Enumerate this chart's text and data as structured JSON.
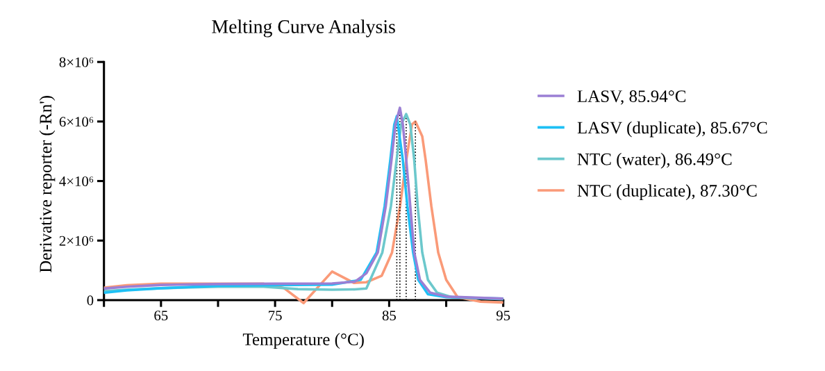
{
  "chart_data": {
    "type": "line",
    "title": "Melting Curve Analysis",
    "xlabel": "Temperature (°C)",
    "ylabel": "Derivative reporter (-Rn')",
    "xlim": [
      60,
      95
    ],
    "xticks": [
      {
        "value": 60,
        "label": null
      },
      65,
      {
        "value": 70,
        "label": null
      },
      75,
      {
        "value": 80,
        "label": null
      },
      85,
      {
        "value": 90,
        "label": null
      },
      95
    ],
    "ylim": [
      -200000,
      8000000
    ],
    "yticks": [
      0,
      {
        "value": 2000000,
        "label": "2×10⁶"
      },
      {
        "value": 4000000,
        "label": "4×10⁶"
      },
      {
        "value": 6000000,
        "label": "6×10⁶"
      },
      {
        "value": 8000000,
        "label": "8×10⁶"
      }
    ],
    "grid": false,
    "legend": "right",
    "marker": "none",
    "line_style": "solid",
    "series": [
      {
        "name": "LASV, 85.94°C",
        "color": "#9b7fd4",
        "x": [
          60,
          62,
          65,
          70,
          75,
          80,
          82,
          83,
          84.0,
          84.7,
          85.2,
          85.55,
          85.94,
          86.2,
          86.5,
          86.85,
          87.2,
          87.7,
          88.6,
          90,
          95
        ],
        "values": [
          390000,
          450000,
          510000,
          540000,
          550000,
          560000,
          620000,
          900000,
          1600000,
          3150000,
          4700000,
          5900000,
          6460000,
          5900000,
          4700000,
          3150000,
          1600000,
          680000,
          250000,
          120000,
          50000
        ]
      },
      {
        "name": "LASV (duplicate), 85.67°C",
        "color": "#1ec0f5",
        "x": [
          60,
          62,
          65,
          70,
          75,
          80,
          82.5,
          83.9,
          84.6,
          85.1,
          85.45,
          85.67,
          86.2,
          86.6,
          87.1,
          87.55,
          88.4,
          90,
          95
        ],
        "values": [
          250000,
          330000,
          400000,
          480000,
          500000,
          520000,
          680000,
          1600000,
          3150000,
          4700000,
          5900000,
          6180000,
          4700000,
          3150000,
          1600000,
          680000,
          200000,
          100000,
          50000
        ]
      },
      {
        "name": "NTC (water), 86.49°C",
        "color": "#6cc8cc",
        "x": [
          60,
          62,
          65,
          70,
          74,
          77,
          80,
          82,
          83,
          83.5,
          84.4,
          85.15,
          85.65,
          86.05,
          86.49,
          86.85,
          87.2,
          87.5,
          87.9,
          88.4,
          89.2,
          90.5,
          95
        ],
        "values": [
          300000,
          350000,
          400000,
          450000,
          450000,
          370000,
          350000,
          360000,
          390000,
          820000,
          1600000,
          3150000,
          4700000,
          5900000,
          6250000,
          5900000,
          4700000,
          3150000,
          1600000,
          680000,
          250000,
          100000,
          30000
        ]
      },
      {
        "name": "NTC (duplicate), 87.30°C",
        "color": "#fa9a78",
        "x": [
          60,
          62,
          65,
          70,
          74,
          75.8,
          77.5,
          80,
          81.9,
          83,
          84.35,
          85.25,
          85.95,
          86.5,
          87.0,
          87.3,
          87.9,
          88.2,
          88.7,
          89.3,
          90.0,
          91.0,
          93,
          95
        ],
        "values": [
          420000,
          500000,
          550000,
          550000,
          550000,
          400000,
          -100000,
          960000,
          580000,
          600000,
          820000,
          1600000,
          3150000,
          4700000,
          5900000,
          6000000,
          5500000,
          4700000,
          3150000,
          1600000,
          680000,
          100000,
          -50000,
          -80000
        ]
      }
    ],
    "ref_lines": [
      {
        "axis": "x",
        "value": 85.94,
        "color": "#000000",
        "line_style": "dotted"
      },
      {
        "axis": "x",
        "value": 85.67,
        "color": "#000000",
        "line_style": "dotted"
      },
      {
        "axis": "x",
        "value": 86.49,
        "color": "#000000",
        "line_style": "dotted"
      },
      {
        "axis": "x",
        "value": 87.3,
        "color": "#000000",
        "line_style": "dotted"
      }
    ]
  }
}
